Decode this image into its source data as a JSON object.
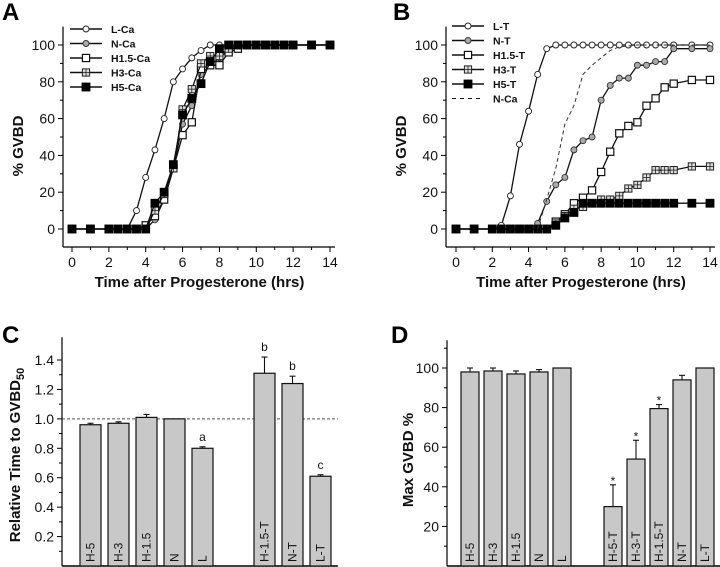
{
  "chart_data": [
    {
      "panel": "A",
      "type": "line",
      "xlabel": "Time after Progesterone (hrs)",
      "ylabel": "% GVBD",
      "xlim": [
        0,
        14
      ],
      "ylim": [
        -8,
        110
      ],
      "xticks": [
        0,
        2,
        4,
        6,
        8,
        10,
        12,
        14
      ],
      "yticks": [
        0,
        20,
        40,
        60,
        80,
        100
      ],
      "legend_position": "top-left",
      "series": [
        {
          "name": "L-Ca",
          "marker": "open-circle",
          "x": [
            0,
            1,
            2,
            2.5,
            3,
            3.5,
            4,
            4.5,
            5,
            5.5,
            6,
            6.5,
            7,
            7.5,
            8,
            8.5,
            9,
            9.5,
            10,
            10.5,
            11,
            11.5,
            12,
            13,
            14
          ],
          "y": [
            0,
            0,
            0,
            0,
            0,
            10,
            28,
            43,
            60,
            80,
            87,
            93,
            97,
            100,
            100,
            100,
            100,
            100,
            100,
            100,
            100,
            100,
            100,
            100,
            100
          ]
        },
        {
          "name": "N-Ca",
          "marker": "gray-circle",
          "x": [
            0,
            1,
            2,
            2.5,
            3,
            3.5,
            4,
            4.5,
            5,
            5.5,
            6,
            6.5,
            7,
            7.5,
            8,
            8.5,
            9,
            9.5,
            10,
            10.5,
            11,
            11.5,
            12,
            13,
            14
          ],
          "y": [
            0,
            0,
            0,
            0,
            0,
            0,
            0,
            5,
            16,
            33,
            57,
            67,
            84,
            89,
            93,
            97,
            99,
            100,
            100,
            100,
            100,
            100,
            100,
            100,
            100
          ]
        },
        {
          "name": "H1.5-Ca",
          "marker": "open-square",
          "x": [
            0,
            1,
            2,
            2.5,
            3,
            3.5,
            4,
            4.5,
            5,
            5.5,
            6,
            6.5,
            7,
            7.5,
            8,
            8.5,
            9,
            9.5,
            10,
            10.5,
            11,
            11.5,
            12,
            13,
            14
          ],
          "y": [
            0,
            0,
            0,
            0,
            0,
            0,
            2,
            7,
            16,
            33,
            51,
            58,
            87,
            89,
            89,
            96,
            98,
            100,
            100,
            100,
            100,
            100,
            100,
            100,
            100
          ]
        },
        {
          "name": "H3-Ca",
          "marker": "crossed-square",
          "x": [
            0,
            1,
            2,
            2.5,
            3,
            3.5,
            4,
            4.5,
            5,
            5.5,
            6,
            6.5,
            7,
            7.5,
            8,
            8.5,
            9,
            9.5,
            10,
            10.5,
            11,
            11.5,
            12,
            13,
            14
          ],
          "y": [
            0,
            0,
            0,
            0,
            0,
            0,
            0,
            10,
            19,
            33,
            65,
            76,
            90,
            94,
            94,
            98,
            100,
            100,
            100,
            100,
            100,
            100,
            100,
            100,
            100
          ]
        },
        {
          "name": "H5-Ca",
          "marker": "filled-square",
          "x": [
            0,
            1,
            2,
            2.5,
            3,
            3.5,
            4,
            4.5,
            5,
            5.5,
            6,
            6.5,
            7,
            7.5,
            8,
            8.5,
            9,
            9.5,
            10,
            10.5,
            11,
            11.5,
            12,
            13,
            14
          ],
          "y": [
            0,
            0,
            0,
            0,
            0,
            0,
            0,
            14,
            20,
            35,
            62,
            71,
            79,
            91,
            98,
            100,
            100,
            100,
            100,
            100,
            100,
            100,
            100,
            100,
            100
          ]
        }
      ]
    },
    {
      "panel": "B",
      "type": "line",
      "xlabel": "Time after Progesterone (hrs)",
      "ylabel": "% GVBD",
      "xlim": [
        0,
        14
      ],
      "ylim": [
        -8,
        110
      ],
      "xticks": [
        0,
        2,
        4,
        6,
        8,
        10,
        12,
        14
      ],
      "yticks": [
        0,
        20,
        40,
        60,
        80,
        100
      ],
      "legend_position": "top-left",
      "series": [
        {
          "name": "L-T",
          "marker": "open-circle",
          "x": [
            0,
            1,
            2,
            2.5,
            3,
            3.5,
            4,
            4.5,
            5,
            5.5,
            6,
            6.5,
            7,
            7.5,
            8,
            8.5,
            9,
            9.5,
            10,
            10.5,
            11,
            11.5,
            12,
            13,
            14
          ],
          "y": [
            0,
            0,
            0,
            2,
            18,
            46,
            64,
            84,
            98,
            100,
            100,
            100,
            100,
            100,
            100,
            100,
            100,
            100,
            100,
            100,
            100,
            100,
            100,
            100,
            100
          ]
        },
        {
          "name": "N-T",
          "marker": "gray-circle",
          "x": [
            0,
            1,
            2,
            2.5,
            3,
            3.5,
            4,
            4.5,
            5,
            5.5,
            6,
            6.5,
            7,
            7.5,
            8,
            8.5,
            9,
            9.5,
            10,
            10.5,
            11,
            11.5,
            12,
            13,
            14
          ],
          "y": [
            0,
            0,
            0,
            0,
            0,
            0,
            0,
            3,
            15,
            24,
            28,
            43,
            48,
            50,
            70,
            78,
            82,
            82,
            89,
            89,
            91,
            91,
            98,
            98,
            98
          ]
        },
        {
          "name": "H1.5-T",
          "marker": "open-square",
          "x": [
            0,
            1,
            2,
            2.5,
            3,
            3.5,
            4,
            4.5,
            5,
            5.5,
            6,
            6.5,
            7,
            7.5,
            8,
            8.5,
            9,
            9.5,
            10,
            10.5,
            11,
            11.5,
            12,
            13,
            14
          ],
          "y": [
            0,
            0,
            0,
            0,
            0,
            0,
            0,
            0,
            0,
            4,
            8,
            14,
            17,
            21,
            31,
            42,
            52,
            56,
            58,
            67,
            71,
            77,
            79,
            81,
            81
          ]
        },
        {
          "name": "H3-T",
          "marker": "crossed-square",
          "x": [
            0,
            1,
            2,
            2.5,
            3,
            3.5,
            4,
            4.5,
            5,
            5.5,
            6,
            6.5,
            7,
            7.5,
            8,
            8.5,
            9,
            9.5,
            10,
            10.5,
            11,
            11.5,
            12,
            13,
            14
          ],
          "y": [
            0,
            0,
            0,
            0,
            0,
            0,
            0,
            0,
            0,
            3,
            7,
            11,
            12,
            14,
            16,
            16,
            18,
            22,
            24,
            28,
            32,
            32,
            32,
            34,
            34
          ]
        },
        {
          "name": "H5-T",
          "marker": "filled-square",
          "x": [
            0,
            1,
            2,
            2.5,
            3,
            3.5,
            4,
            4.5,
            5,
            5.5,
            6,
            6.5,
            7,
            7.5,
            8,
            8.5,
            9,
            9.5,
            10,
            10.5,
            11,
            11.5,
            12,
            13,
            14
          ],
          "y": [
            0,
            0,
            0,
            0,
            0,
            0,
            0,
            0,
            0,
            2,
            6,
            9,
            14,
            14,
            14,
            14,
            14,
            14,
            14,
            14,
            14,
            14,
            14,
            14,
            14
          ]
        },
        {
          "name": "N-Ca",
          "marker": "none",
          "dashed": true,
          "x": [
            4.5,
            5,
            5.5,
            6,
            6.5,
            7,
            7.5,
            8,
            8.5,
            9,
            10,
            11,
            12,
            13,
            14
          ],
          "y": [
            0,
            16,
            33,
            57,
            67,
            84,
            89,
            93,
            97,
            99,
            100,
            100,
            100,
            100,
            100
          ]
        }
      ]
    },
    {
      "panel": "C",
      "type": "bar",
      "ylabel": "Relative Time to GVBD50",
      "ylim": [
        0,
        1.5
      ],
      "yticks": [
        0.2,
        0.4,
        0.6,
        0.8,
        1.0,
        1.2,
        1.4
      ],
      "reference_line": 1.0,
      "categories": [
        "H-5",
        "H-3",
        "H-1.5",
        "N",
        "L",
        "H-1.5-T",
        "N-T",
        "L-T"
      ],
      "values": [
        0.96,
        0.97,
        1.01,
        1.0,
        0.8,
        1.31,
        1.24,
        0.61
      ],
      "errors": [
        0.01,
        0.01,
        0.02,
        0.0,
        0.01,
        0.11,
        0.05,
        0.01
      ],
      "annotations": [
        "",
        "",
        "",
        "",
        "a",
        "b",
        "b",
        "c"
      ],
      "group_break_after": 4
    },
    {
      "panel": "D",
      "type": "bar",
      "ylabel": "Max GVBD %",
      "ylim": [
        0,
        110
      ],
      "yticks": [
        20,
        40,
        60,
        80,
        100
      ],
      "categories": [
        "H-5",
        "H-3",
        "H-1.5",
        "N",
        "L",
        "H-5-T",
        "H-3-T",
        "H-1.5-T",
        "N-T",
        "L-T"
      ],
      "values": [
        98,
        98.5,
        97,
        98,
        100,
        30,
        54,
        79.5,
        94,
        100
      ],
      "errors": [
        2,
        1.5,
        1.5,
        1.2,
        0,
        11,
        9.5,
        2,
        2.3,
        0
      ],
      "annotations": [
        "",
        "",
        "",
        "",
        "",
        "*",
        "*",
        "*",
        "",
        ""
      ],
      "group_break_after": 4
    }
  ],
  "panel_labels": [
    "A",
    "B",
    "C",
    "D"
  ]
}
